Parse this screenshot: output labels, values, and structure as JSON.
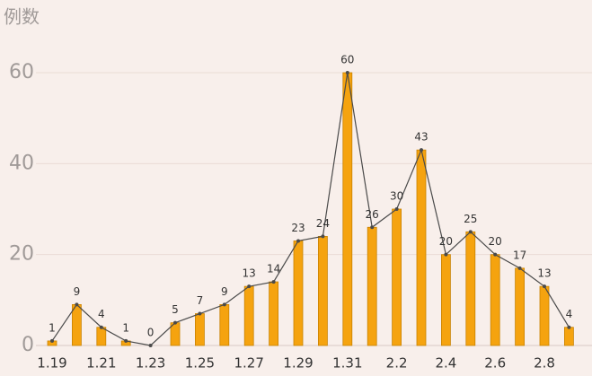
{
  "chart_data": {
    "type": "bar",
    "y_label": "例数",
    "categories": [
      "1.19",
      null,
      "1.21",
      null,
      "1.23",
      null,
      "1.25",
      null,
      "1.27",
      null,
      "1.29",
      null,
      "1.31",
      null,
      "2.2",
      null,
      "2.4",
      null,
      "2.6",
      null,
      "2.8",
      null
    ],
    "values": [
      1,
      9,
      4,
      1,
      0,
      5,
      7,
      9,
      13,
      14,
      23,
      24,
      60,
      26,
      30,
      43,
      20,
      25,
      20,
      17,
      13,
      4
    ],
    "color": "#f5a30f",
    "line_color": "#4a4a4a",
    "line": true,
    "ylim": [
      0,
      60
    ],
    "yticks": [
      0,
      20,
      40,
      60
    ],
    "grid": true
  }
}
